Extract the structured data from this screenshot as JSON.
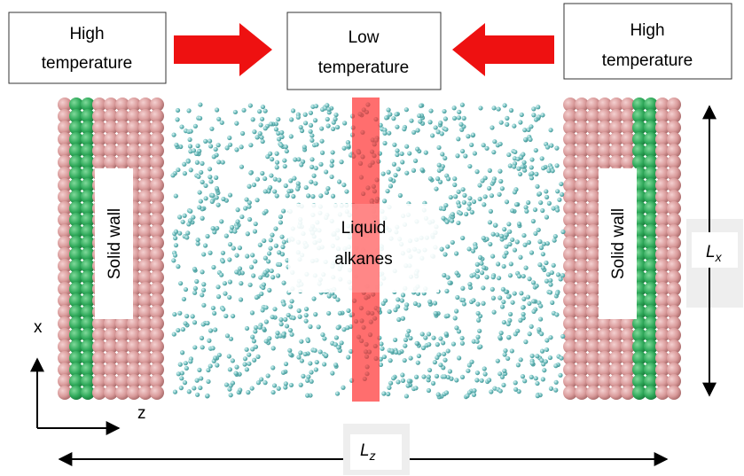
{
  "boxes": {
    "left": {
      "line1": "High",
      "line2": "temperature"
    },
    "middle": {
      "line1": "Low",
      "line2": "temperature"
    },
    "right": {
      "line1": "High",
      "line2": "temperature"
    }
  },
  "walls": {
    "left": "Solid wall",
    "right": "Solid wall"
  },
  "liquid": {
    "line1": "Liquid",
    "line2": "alkanes"
  },
  "dimensions": {
    "lx": {
      "main": "L",
      "sub": "x"
    },
    "lz": {
      "main": "L",
      "sub": "z"
    }
  },
  "axes": {
    "x": "x",
    "z": "z"
  }
}
